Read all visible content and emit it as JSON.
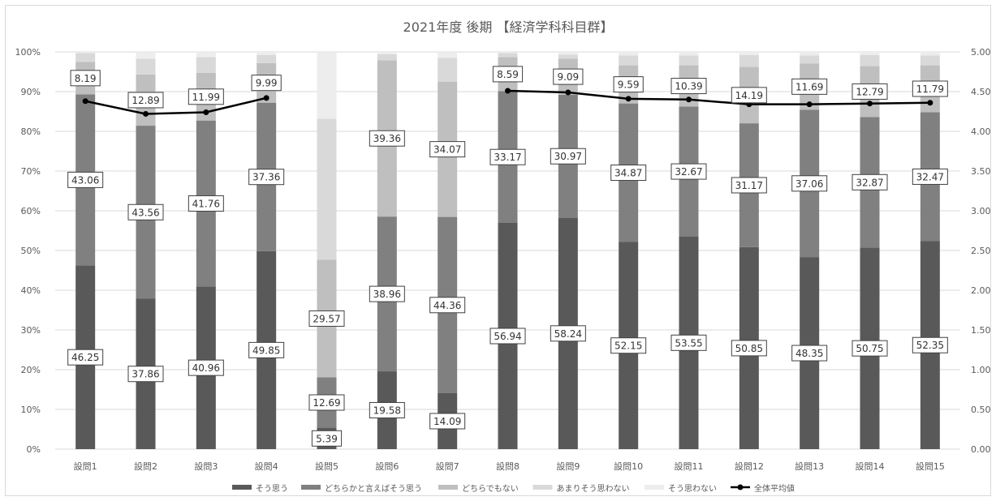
{
  "chart_data": {
    "type": "bar",
    "title": "2021年度 後期 【経済学科科目群】",
    "categories": [
      "設問1",
      "設問2",
      "設問3",
      "設問4",
      "設問5",
      "設問6",
      "設問7",
      "設問8",
      "設問9",
      "設問10",
      "設問11",
      "設問12",
      "設問13",
      "設問14",
      "設問15"
    ],
    "y_left": {
      "ticks": [
        "0%",
        "10%",
        "20%",
        "30%",
        "40%",
        "50%",
        "60%",
        "70%",
        "80%",
        "90%",
        "100%"
      ],
      "ylim": [
        0,
        100
      ]
    },
    "y_right": {
      "ticks": [
        "0.00",
        "0.50",
        "1.00",
        "1.50",
        "2.00",
        "2.50",
        "3.00",
        "3.50",
        "4.00",
        "4.50",
        "5.00"
      ],
      "ylim": [
        0,
        5
      ]
    },
    "grid": true,
    "legend_position": "bottom",
    "series": [
      {
        "name": "そう思う",
        "color": "#595959",
        "label_color": "#333333",
        "values": [
          46.25,
          37.86,
          40.96,
          49.85,
          5.39,
          19.58,
          14.09,
          56.94,
          58.24,
          52.15,
          53.55,
          50.85,
          48.35,
          50.75,
          52.35
        ],
        "labels": [
          "46.25",
          "37.86",
          "40.96",
          "49.85",
          "5.39",
          "19.58",
          "14.09",
          "56.94",
          "58.24",
          "52.15",
          "53.55",
          "50.85",
          "48.35",
          "50.75",
          "52.35"
        ]
      },
      {
        "name": "どちらかと言えばそう思う",
        "color": "#808080",
        "label_color": "#333333",
        "values": [
          43.06,
          43.56,
          41.76,
          37.36,
          12.69,
          38.96,
          44.36,
          33.17,
          30.97,
          34.87,
          32.67,
          31.17,
          37.06,
          32.87,
          32.47
        ],
        "labels": [
          "43.06",
          "43.56",
          "41.76",
          "37.36",
          "12.69",
          "38.96",
          "44.36",
          "33.17",
          "30.97",
          "34.87",
          "32.67",
          "31.17",
          "37.06",
          "32.87",
          "32.47"
        ]
      },
      {
        "name": "どちらでもない",
        "color": "#bfbfbf",
        "label_color": "#333333",
        "values": [
          8.19,
          12.89,
          11.99,
          9.99,
          29.57,
          39.36,
          34.07,
          8.59,
          9.09,
          9.59,
          10.39,
          14.19,
          11.69,
          12.79,
          11.79
        ],
        "labels": [
          "8.19",
          "12.89",
          "11.99",
          "9.99",
          "29.57",
          "39.36",
          "34.07",
          "8.59",
          "9.09",
          "9.59",
          "10.39",
          "14.19",
          "11.69",
          "12.79",
          "11.79"
        ]
      },
      {
        "name": "あまりそう思わない",
        "color": "#d9d9d9",
        "values": [
          2.2,
          4.0,
          4.0,
          2.0,
          35.5,
          1.5,
          6.0,
          1.0,
          1.0,
          2.5,
          2.5,
          3.0,
          2.0,
          2.8,
          2.5
        ]
      },
      {
        "name": "そう思わない",
        "color": "#ededed",
        "values": [
          0.3,
          1.69,
          1.29,
          0.8,
          16.85,
          0.6,
          1.48,
          0.3,
          0.7,
          0.89,
          0.89,
          0.79,
          0.9,
          0.79,
          0.89
        ]
      }
    ],
    "line": {
      "name": "全体平均値",
      "color": "#000000",
      "values": [
        4.38,
        4.22,
        4.24,
        4.42,
        null,
        null,
        null,
        4.51,
        4.49,
        4.41,
        4.4,
        4.34,
        4.34,
        4.35,
        4.36
      ]
    }
  }
}
